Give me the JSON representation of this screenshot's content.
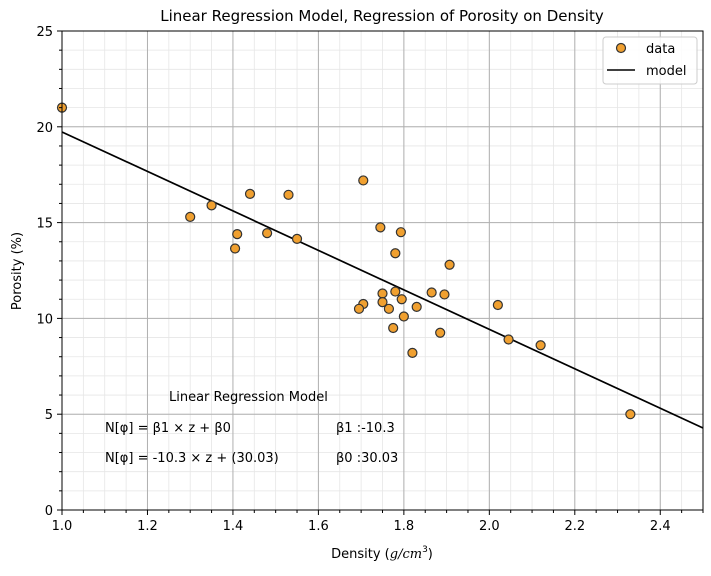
{
  "chart_data": {
    "type": "scatter",
    "title": "Linear Regression Model, Regression of Porosity on Density",
    "xlabel_main": "Density (",
    "xlabel_unit": "g/cm",
    "xlabel_exp": "3",
    "xlabel_close": ")",
    "ylabel": "Porosity (%)",
    "xlim": [
      1.0,
      2.5
    ],
    "ylim": [
      0,
      25
    ],
    "xticks": [
      1.0,
      1.2,
      1.4,
      1.6,
      1.8,
      2.0,
      2.2,
      2.4
    ],
    "xtick_labels": [
      "1.0",
      "1.2",
      "1.4",
      "1.6",
      "1.8",
      "2.0",
      "2.2",
      "2.4"
    ],
    "yticks": [
      0,
      5,
      10,
      15,
      20,
      25
    ],
    "ytick_labels": [
      "0",
      "5",
      "10",
      "15",
      "20",
      "25"
    ],
    "grid": true,
    "legend_position": "top-right",
    "series": [
      {
        "name": "data",
        "kind": "scatter",
        "color": "#f0a030",
        "edge_color": "#333333",
        "x": [
          1.0,
          1.3,
          1.35,
          1.44,
          1.53,
          1.41,
          1.48,
          1.55,
          1.405,
          1.705,
          1.745,
          1.793,
          1.78,
          1.907,
          1.75,
          1.78,
          1.75,
          1.795,
          1.83,
          1.865,
          1.895,
          1.705,
          1.695,
          1.765,
          1.8,
          1.775,
          1.885,
          1.82,
          2.02,
          2.045,
          2.12,
          2.33
        ],
        "y": [
          21.0,
          15.3,
          15.9,
          16.5,
          16.45,
          14.4,
          14.45,
          14.15,
          13.65,
          17.2,
          14.75,
          14.5,
          13.4,
          12.8,
          11.3,
          11.4,
          10.85,
          11.0,
          10.6,
          11.35,
          11.25,
          10.75,
          10.5,
          10.5,
          10.1,
          9.5,
          9.25,
          8.2,
          10.7,
          8.9,
          8.6,
          5.0
        ]
      },
      {
        "name": "model",
        "kind": "line",
        "color": "#000000",
        "intercept": 30.03,
        "slope": -10.3
      }
    ],
    "annotations": {
      "heading": "Linear Regression Model",
      "eq_general_lhs": "N[φ] = ",
      "eq_general_rhs": "β1 × z + β0",
      "eq_fit": "N[φ] = -10.3 × z + (30.03)",
      "beta1": "β1 :-10.3",
      "beta0": "β0 :30.03"
    }
  }
}
